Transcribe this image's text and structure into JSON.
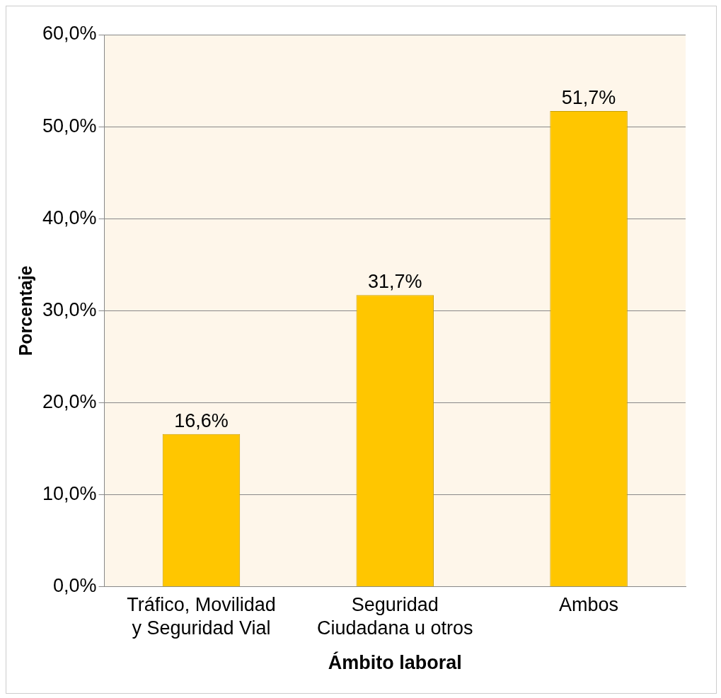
{
  "chart_data": {
    "type": "bar",
    "xlabel": "Ámbito laboral",
    "ylabel": "Porcentaje",
    "categories": [
      "Tráfico, Movilidad y Seguridad Vial",
      "Seguridad Ciudadana u otros",
      "Ambos"
    ],
    "values": [
      16.6,
      31.7,
      51.7
    ],
    "color": "#ffc600",
    "value_labels": [
      "16,6%",
      "31,7%",
      "51,7%"
    ],
    "ylim": [
      0,
      60
    ],
    "yticks": [
      {
        "value": 0,
        "label": "0,0%"
      },
      {
        "value": 10,
        "label": "10,0%"
      },
      {
        "value": 20,
        "label": "20,0%"
      },
      {
        "value": 30,
        "label": "30,0%"
      },
      {
        "value": 40,
        "label": "40,0%"
      },
      {
        "value": 50,
        "label": "50,0%"
      },
      {
        "value": 60,
        "label": "60,0%"
      }
    ],
    "grid": "y",
    "legend": false
  }
}
